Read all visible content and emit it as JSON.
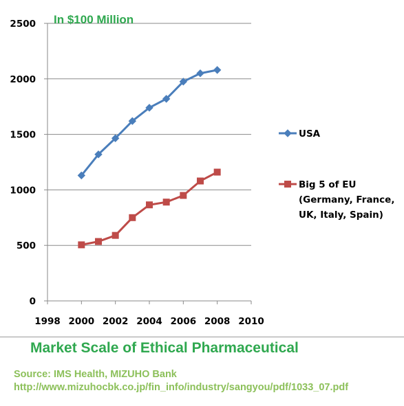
{
  "chart_data": {
    "type": "line",
    "unit_note": "In $100 Million",
    "x": [
      2000,
      2001,
      2002,
      2003,
      2004,
      2005,
      2006,
      2007,
      2008
    ],
    "xlim": [
      1998,
      2010
    ],
    "ylim": [
      0,
      2500
    ],
    "x_ticks": [
      "1998",
      "2000",
      "2002",
      "2004",
      "2006",
      "2008",
      "2010"
    ],
    "y_ticks": [
      "0",
      "500",
      "1000",
      "1500",
      "2000",
      "2500"
    ],
    "grid": true,
    "legend_position": "right",
    "series": [
      {
        "name": "USA",
        "color": "#4a7ebb",
        "marker": "diamond",
        "values": [
          1130,
          1320,
          1465,
          1620,
          1740,
          1820,
          1975,
          2050,
          2080
        ]
      },
      {
        "name": "Big 5 of EU",
        "legend_lines": [
          "Big 5 of EU",
          "(Germany, France,",
          "UK, Italy, Spain)"
        ],
        "color": "#be4b48",
        "marker": "square",
        "values": [
          505,
          535,
          590,
          750,
          865,
          890,
          950,
          1080,
          1160
        ]
      }
    ]
  },
  "caption": {
    "title": "Market Scale of Ethical Pharmaceutical",
    "source": "Source: IMS Health, MIZUHO Bank",
    "url": "http://www.mizuhocbk.co.jp/fin_info/industry/sangyou/pdf/1033_07.pdf"
  }
}
